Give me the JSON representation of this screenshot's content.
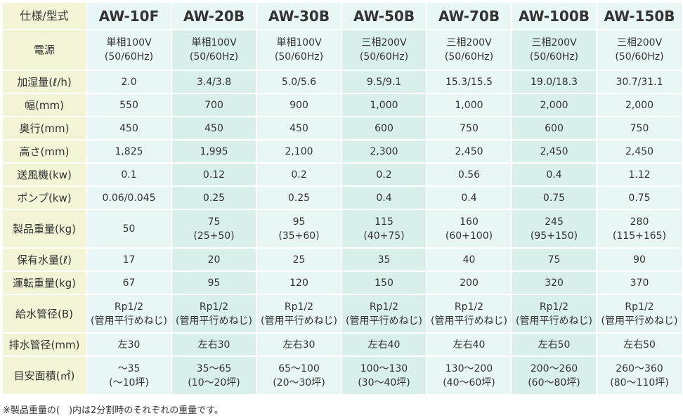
{
  "header": {
    "corner": "仕様/型式",
    "models": [
      "AW-10F",
      "AW-20B",
      "AW-30B",
      "AW-50B",
      "AW-70B",
      "AW-100B",
      "AW-150B"
    ]
  },
  "rows": [
    {
      "label": "電源",
      "cells": [
        [
          "単相100V",
          "(50/60Hz)"
        ],
        [
          "単相100V",
          "(50/60Hz)"
        ],
        [
          "単相100V",
          "(50/60Hz)"
        ],
        [
          "三相200V",
          "(50/60Hz)"
        ],
        [
          "三相200V",
          "(50/60Hz)"
        ],
        [
          "三相200V",
          "(50/60Hz)"
        ],
        [
          "三相200V",
          "(50/60Hz)"
        ]
      ]
    },
    {
      "label": "加湿量(ℓ/h)",
      "cells": [
        [
          "2.0"
        ],
        [
          "3.4/3.8"
        ],
        [
          "5.0/5.6"
        ],
        [
          "9.5/9.1"
        ],
        [
          "15.3/15.5"
        ],
        [
          "19.0/18.3"
        ],
        [
          "30.7/31.1"
        ]
      ]
    },
    {
      "label": "幅(mm)",
      "cells": [
        [
          "550"
        ],
        [
          "700"
        ],
        [
          "900"
        ],
        [
          "1,000"
        ],
        [
          "1,000"
        ],
        [
          "2,000"
        ],
        [
          "2,000"
        ]
      ]
    },
    {
      "label": "奥行(mm)",
      "cells": [
        [
          "450"
        ],
        [
          "450"
        ],
        [
          "450"
        ],
        [
          "600"
        ],
        [
          "750"
        ],
        [
          "600"
        ],
        [
          "750"
        ]
      ]
    },
    {
      "label": "高さ(mm)",
      "cells": [
        [
          "1,825"
        ],
        [
          "1,995"
        ],
        [
          "2,100"
        ],
        [
          "2,300"
        ],
        [
          "2,450"
        ],
        [
          "2,450"
        ],
        [
          "2,450"
        ]
      ]
    },
    {
      "label": "送風機(kw)",
      "cells": [
        [
          "0.1"
        ],
        [
          "0.12"
        ],
        [
          "0.2"
        ],
        [
          "0.2"
        ],
        [
          "0.56"
        ],
        [
          "0.4"
        ],
        [
          "1.12"
        ]
      ]
    },
    {
      "label": "ポンプ(kw)",
      "cells": [
        [
          "0.06/0.045"
        ],
        [
          "0.25"
        ],
        [
          "0.25"
        ],
        [
          "0.4"
        ],
        [
          "0.4"
        ],
        [
          "0.75"
        ],
        [
          "0.75"
        ]
      ]
    },
    {
      "label": "製品重量(kg)",
      "cells": [
        [
          "50"
        ],
        [
          "75",
          "(25+50)"
        ],
        [
          "95",
          "(35+60)"
        ],
        [
          "115",
          "(40+75)"
        ],
        [
          "160",
          "(60+100)"
        ],
        [
          "245",
          "(95+150)"
        ],
        [
          "280",
          "(115+165)"
        ]
      ]
    },
    {
      "label": "保有水量(ℓ)",
      "cells": [
        [
          "17"
        ],
        [
          "20"
        ],
        [
          "25"
        ],
        [
          "35"
        ],
        [
          "40"
        ],
        [
          "75"
        ],
        [
          "90"
        ]
      ]
    },
    {
      "label": "運転重量(kg)",
      "cells": [
        [
          "67"
        ],
        [
          "95"
        ],
        [
          "120"
        ],
        [
          "150"
        ],
        [
          "200"
        ],
        [
          "320"
        ],
        [
          "370"
        ]
      ]
    },
    {
      "label": "給水管径(B)",
      "cells": [
        [
          "Rp1/2",
          "(管用平行めねじ)"
        ],
        [
          "Rp1/2",
          "(管用平行めねじ)"
        ],
        [
          "Rp1/2",
          "(管用平行めねじ)"
        ],
        [
          "Rp1/2",
          "(管用平行めねじ)"
        ],
        [
          "Rp1/2",
          "(管用平行めねじ)"
        ],
        [
          "Rp1/2",
          "(管用平行めねじ)"
        ],
        [
          "Rp1/2",
          "(管用平行めねじ)"
        ]
      ]
    },
    {
      "label": "排水管径(mm)",
      "cells": [
        [
          "左30"
        ],
        [
          "左右30"
        ],
        [
          "左右30"
        ],
        [
          "左右40"
        ],
        [
          "左右40"
        ],
        [
          "左右50"
        ],
        [
          "左右50"
        ]
      ]
    },
    {
      "label": "目安面積(㎡)",
      "cells": [
        [
          "～35",
          "(～10坪)"
        ],
        [
          "35～65",
          "(10～20坪)"
        ],
        [
          "65～100",
          "(20～30坪)"
        ],
        [
          "100～130",
          "(30～40坪)"
        ],
        [
          "130～200",
          "(40～60坪)"
        ],
        [
          "200～260",
          "(60～80坪)"
        ],
        [
          "260～360",
          "(80～110坪)"
        ]
      ]
    }
  ],
  "footnote": "※製品重量の(　)内は2分割時のそれぞれの重量です。",
  "colors": {
    "label_bg": "#f3f3d6",
    "cell_bg": "#e8f6f6",
    "cell_alt_bg": "#d8efea",
    "border": "#ffffff"
  }
}
